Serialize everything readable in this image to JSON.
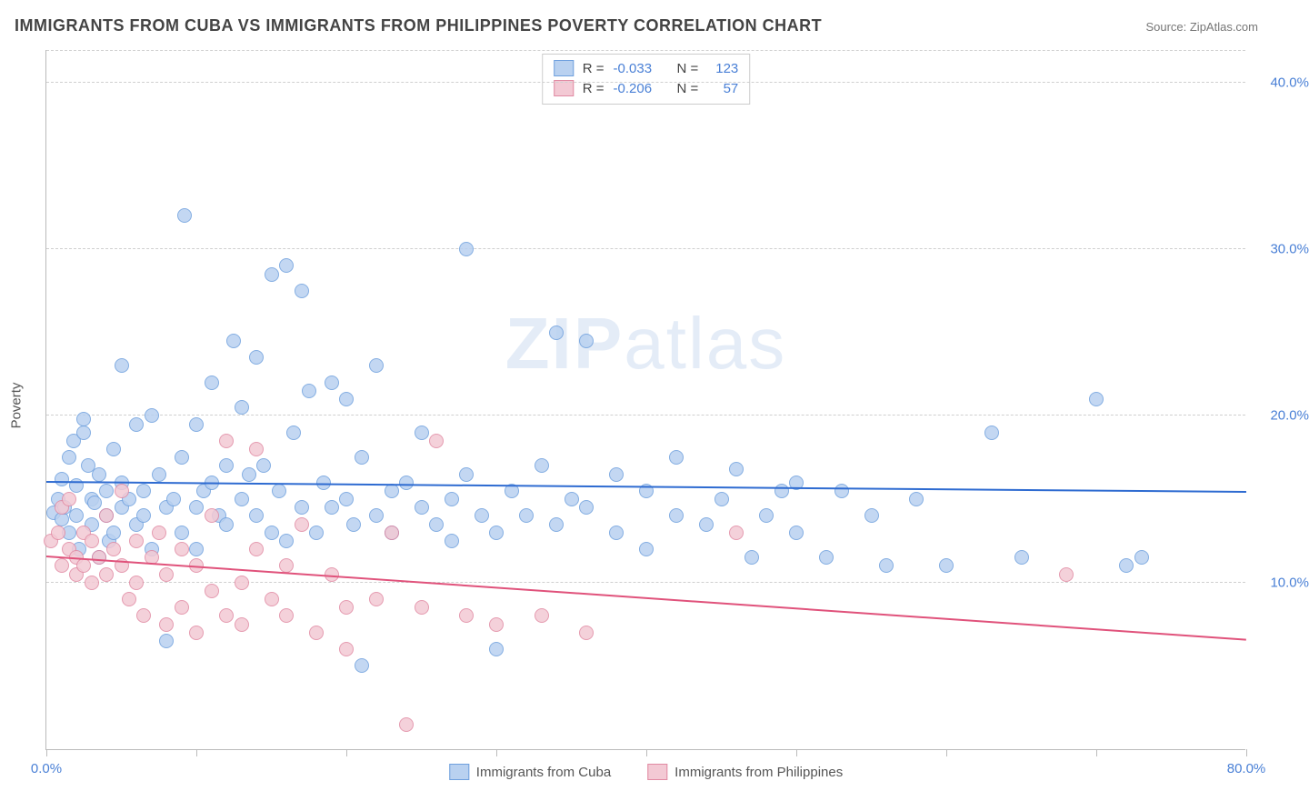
{
  "title": "IMMIGRANTS FROM CUBA VS IMMIGRANTS FROM PHILIPPINES POVERTY CORRELATION CHART",
  "source_label": "Source: ",
  "source_name": "ZipAtlas.com",
  "y_axis_title": "Poverty",
  "watermark": {
    "bold": "ZIP",
    "light": "atlas"
  },
  "chart": {
    "type": "scatter",
    "xlim": [
      0,
      80
    ],
    "ylim": [
      0,
      42
    ],
    "x_ticks": [
      0,
      10,
      20,
      30,
      40,
      50,
      60,
      70,
      80
    ],
    "x_tick_labels": {
      "0": "0.0%",
      "80": "80.0%"
    },
    "y_ticks": [
      10,
      20,
      30,
      40
    ],
    "y_tick_labels": {
      "10": "10.0%",
      "20": "20.0%",
      "30": "30.0%",
      "40": "40.0%"
    },
    "background_color": "#ffffff",
    "grid_color": "#d0d0d0",
    "axis_color": "#bbbbbb",
    "label_color": "#4a80d6",
    "marker_radius": 8,
    "series": [
      {
        "id": "cuba",
        "label": "Immigrants from Cuba",
        "R": "-0.033",
        "N": "123",
        "fill": "#b9d1f0",
        "stroke": "#6fa0de",
        "trend_color": "#2e6bd1",
        "trend": {
          "y_at_x0": 16.0,
          "y_at_xmax": 15.4
        },
        "points": [
          [
            0.5,
            14.2
          ],
          [
            0.8,
            15.0
          ],
          [
            1.0,
            13.8
          ],
          [
            1.0,
            16.2
          ],
          [
            1.2,
            14.5
          ],
          [
            1.5,
            13.0
          ],
          [
            1.5,
            17.5
          ],
          [
            1.8,
            18.5
          ],
          [
            2.0,
            14.0
          ],
          [
            2.0,
            15.8
          ],
          [
            2.2,
            12.0
          ],
          [
            2.5,
            19.0
          ],
          [
            2.5,
            19.8
          ],
          [
            2.8,
            17.0
          ],
          [
            3.0,
            15.0
          ],
          [
            3.0,
            13.5
          ],
          [
            3.2,
            14.8
          ],
          [
            3.5,
            16.5
          ],
          [
            3.5,
            11.5
          ],
          [
            4.0,
            14.0
          ],
          [
            4.0,
            15.5
          ],
          [
            4.2,
            12.5
          ],
          [
            4.5,
            18.0
          ],
          [
            4.5,
            13.0
          ],
          [
            5.0,
            14.5
          ],
          [
            5.0,
            16.0
          ],
          [
            5.0,
            23.0
          ],
          [
            5.5,
            15.0
          ],
          [
            6.0,
            13.5
          ],
          [
            6.0,
            19.5
          ],
          [
            6.5,
            14.0
          ],
          [
            6.5,
            15.5
          ],
          [
            7.0,
            12.0
          ],
          [
            7.0,
            20.0
          ],
          [
            7.5,
            16.5
          ],
          [
            8.0,
            14.5
          ],
          [
            8.0,
            6.5
          ],
          [
            8.5,
            15.0
          ],
          [
            9.0,
            17.5
          ],
          [
            9.0,
            13.0
          ],
          [
            9.2,
            32.0
          ],
          [
            10.0,
            14.5
          ],
          [
            10.0,
            19.5
          ],
          [
            10.0,
            12.0
          ],
          [
            10.5,
            15.5
          ],
          [
            11.0,
            16.0
          ],
          [
            11.0,
            22.0
          ],
          [
            11.5,
            14.0
          ],
          [
            12.0,
            17.0
          ],
          [
            12.0,
            13.5
          ],
          [
            12.5,
            24.5
          ],
          [
            13.0,
            15.0
          ],
          [
            13.0,
            20.5
          ],
          [
            13.5,
            16.5
          ],
          [
            14.0,
            14.0
          ],
          [
            14.0,
            23.5
          ],
          [
            14.5,
            17.0
          ],
          [
            15.0,
            13.0
          ],
          [
            15.0,
            28.5
          ],
          [
            15.5,
            15.5
          ],
          [
            16.0,
            12.5
          ],
          [
            16.0,
            29.0
          ],
          [
            16.5,
            19.0
          ],
          [
            17.0,
            14.5
          ],
          [
            17.0,
            27.5
          ],
          [
            17.5,
            21.5
          ],
          [
            18.0,
            13.0
          ],
          [
            18.5,
            16.0
          ],
          [
            19.0,
            14.5
          ],
          [
            19.0,
            22.0
          ],
          [
            20.0,
            15.0
          ],
          [
            20.0,
            21.0
          ],
          [
            20.5,
            13.5
          ],
          [
            21.0,
            5.0
          ],
          [
            21.0,
            17.5
          ],
          [
            22.0,
            14.0
          ],
          [
            22.0,
            23.0
          ],
          [
            23.0,
            15.5
          ],
          [
            23.0,
            13.0
          ],
          [
            24.0,
            16.0
          ],
          [
            25.0,
            14.5
          ],
          [
            25.0,
            19.0
          ],
          [
            26.0,
            13.5
          ],
          [
            27.0,
            15.0
          ],
          [
            27.0,
            12.5
          ],
          [
            28.0,
            30.0
          ],
          [
            28.0,
            16.5
          ],
          [
            29.0,
            14.0
          ],
          [
            30.0,
            13.0
          ],
          [
            30.0,
            6.0
          ],
          [
            31.0,
            15.5
          ],
          [
            32.0,
            14.0
          ],
          [
            33.0,
            17.0
          ],
          [
            34.0,
            25.0
          ],
          [
            34.0,
            13.5
          ],
          [
            35.0,
            15.0
          ],
          [
            36.0,
            24.5
          ],
          [
            36.0,
            14.5
          ],
          [
            38.0,
            16.5
          ],
          [
            38.0,
            13.0
          ],
          [
            40.0,
            15.5
          ],
          [
            40.0,
            12.0
          ],
          [
            42.0,
            14.0
          ],
          [
            42.0,
            17.5
          ],
          [
            44.0,
            13.5
          ],
          [
            45.0,
            15.0
          ],
          [
            46.0,
            16.8
          ],
          [
            47.0,
            11.5
          ],
          [
            48.0,
            14.0
          ],
          [
            49.0,
            15.5
          ],
          [
            50.0,
            13.0
          ],
          [
            50.0,
            16.0
          ],
          [
            52.0,
            11.5
          ],
          [
            53.0,
            15.5
          ],
          [
            55.0,
            14.0
          ],
          [
            56.0,
            11.0
          ],
          [
            58.0,
            15.0
          ],
          [
            60.0,
            11.0
          ],
          [
            63.0,
            19.0
          ],
          [
            65.0,
            11.5
          ],
          [
            70.0,
            21.0
          ],
          [
            72.0,
            11.0
          ],
          [
            73.0,
            11.5
          ]
        ]
      },
      {
        "id": "philippines",
        "label": "Immigrants from Philippines",
        "R": "-0.206",
        "N": "57",
        "fill": "#f3c9d4",
        "stroke": "#e18aa3",
        "trend_color": "#e0527b",
        "trend": {
          "y_at_x0": 11.5,
          "y_at_xmax": 6.5
        },
        "points": [
          [
            0.3,
            12.5
          ],
          [
            0.8,
            13.0
          ],
          [
            1.0,
            14.5
          ],
          [
            1.0,
            11.0
          ],
          [
            1.5,
            12.0
          ],
          [
            1.5,
            15.0
          ],
          [
            2.0,
            11.5
          ],
          [
            2.0,
            10.5
          ],
          [
            2.5,
            13.0
          ],
          [
            2.5,
            11.0
          ],
          [
            3.0,
            12.5
          ],
          [
            3.0,
            10.0
          ],
          [
            3.5,
            11.5
          ],
          [
            4.0,
            14.0
          ],
          [
            4.0,
            10.5
          ],
          [
            4.5,
            12.0
          ],
          [
            5.0,
            11.0
          ],
          [
            5.0,
            15.5
          ],
          [
            5.5,
            9.0
          ],
          [
            6.0,
            12.5
          ],
          [
            6.0,
            10.0
          ],
          [
            6.5,
            8.0
          ],
          [
            7.0,
            11.5
          ],
          [
            7.5,
            13.0
          ],
          [
            8.0,
            7.5
          ],
          [
            8.0,
            10.5
          ],
          [
            9.0,
            12.0
          ],
          [
            9.0,
            8.5
          ],
          [
            10.0,
            7.0
          ],
          [
            10.0,
            11.0
          ],
          [
            11.0,
            9.5
          ],
          [
            11.0,
            14.0
          ],
          [
            12.0,
            8.0
          ],
          [
            12.0,
            18.5
          ],
          [
            13.0,
            10.0
          ],
          [
            13.0,
            7.5
          ],
          [
            14.0,
            12.0
          ],
          [
            14.0,
            18.0
          ],
          [
            15.0,
            9.0
          ],
          [
            16.0,
            11.0
          ],
          [
            16.0,
            8.0
          ],
          [
            17.0,
            13.5
          ],
          [
            18.0,
            7.0
          ],
          [
            19.0,
            10.5
          ],
          [
            20.0,
            8.5
          ],
          [
            20.0,
            6.0
          ],
          [
            22.0,
            9.0
          ],
          [
            23.0,
            13.0
          ],
          [
            24.0,
            1.5
          ],
          [
            25.0,
            8.5
          ],
          [
            26.0,
            18.5
          ],
          [
            28.0,
            8.0
          ],
          [
            30.0,
            7.5
          ],
          [
            33.0,
            8.0
          ],
          [
            36.0,
            7.0
          ],
          [
            46.0,
            13.0
          ],
          [
            68.0,
            10.5
          ]
        ]
      }
    ]
  },
  "stats_labels": {
    "R": "R =",
    "N": "N ="
  },
  "legend": {
    "cuba": "Immigrants from Cuba",
    "philippines": "Immigrants from Philippines"
  }
}
